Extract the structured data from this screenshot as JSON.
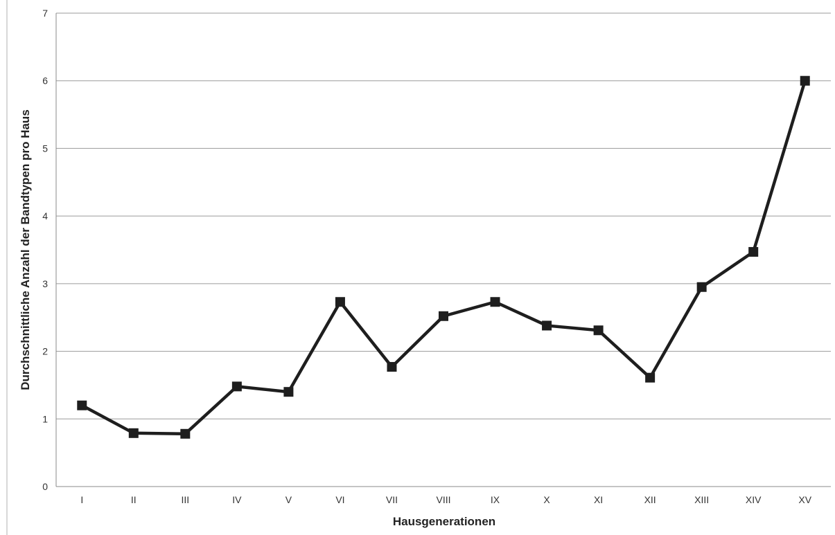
{
  "chart_data": {
    "type": "line",
    "categories": [
      "I",
      "II",
      "III",
      "IV",
      "V",
      "VI",
      "VII",
      "VIII",
      "IX",
      "X",
      "XI",
      "XII",
      "XIII",
      "XIV",
      "XV"
    ],
    "series": [
      {
        "values": [
          1.2,
          0.79,
          0.78,
          1.48,
          1.4,
          2.73,
          1.77,
          2.52,
          2.73,
          2.38,
          2.31,
          1.61,
          2.95,
          3.47,
          6.0
        ],
        "color": "#1e1e1e",
        "marker": "square"
      }
    ],
    "xlabel": "Hausgenerationen",
    "ylabel": "Durchschnittliche Anzahl der Bandtypen pro Haus",
    "ylim": [
      0,
      7
    ],
    "yticks": [
      0,
      1,
      2,
      3,
      4,
      5,
      6,
      7
    ],
    "grid": true,
    "legend": "none"
  }
}
